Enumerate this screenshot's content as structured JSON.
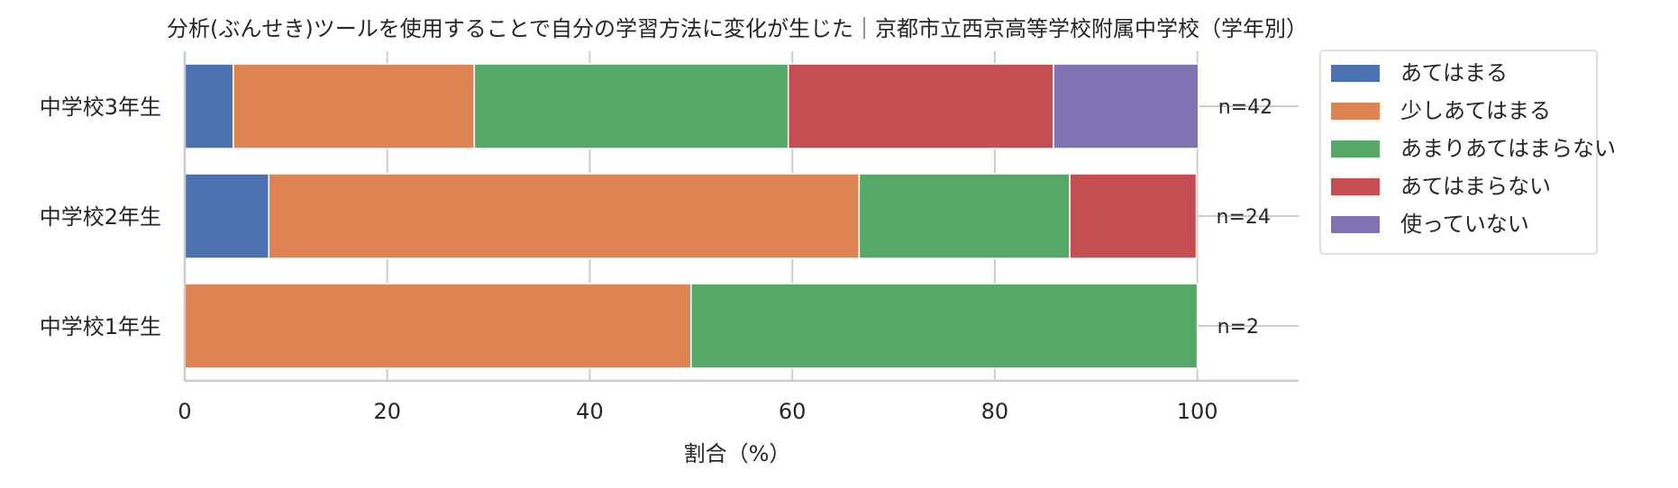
{
  "chart_data": {
    "type": "bar",
    "orientation": "horizontal",
    "stacked": true,
    "title": "分析(ぶんせき)ツールを使用することで自分の学習方法に変化が生じた｜京都市立西京高等学校附属中学校（学年別）",
    "xlabel": "割合（%）",
    "ylabel": "",
    "xlim": [
      0,
      110
    ],
    "xticks": [
      "0",
      "20",
      "40",
      "60",
      "80",
      "100"
    ],
    "grid": "x",
    "legend_position": "outside right",
    "categories": [
      "中学校3年生",
      "中学校2年生",
      "中学校1年生"
    ],
    "sample_sizes": [
      "n=42",
      "n=24",
      "n=2"
    ],
    "series": [
      {
        "name": "あてはまる",
        "color": "#4c72b0",
        "values": [
          4.8,
          8.3,
          0
        ]
      },
      {
        "name": "少しあてはまる",
        "color": "#dd8452",
        "values": [
          23.8,
          58.3,
          50.0
        ]
      },
      {
        "name": "あまりあてはまらない",
        "color": "#55a868",
        "values": [
          31.0,
          20.8,
          50.0
        ]
      },
      {
        "name": "あてはまらない",
        "color": "#c44e52",
        "values": [
          26.2,
          12.5,
          0
        ]
      },
      {
        "name": "使っていない",
        "color": "#8172b3",
        "values": [
          14.3,
          0,
          0
        ]
      }
    ]
  }
}
